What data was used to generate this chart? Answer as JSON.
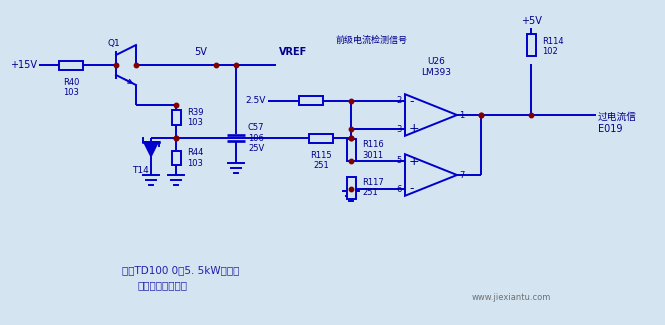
{
  "bg_color": "#d4e4f0",
  "line_color": "#0000cc",
  "dot_color": "#800000",
  "text_color": "#00008b",
  "title1": "华为TD100 0型5. 5kW变频器",
  "title2": "电流检测后级电路",
  "watermark": "www.jiexiantu.com",
  "label_15v": "+15V",
  "label_5v_top": "5V",
  "label_5v_supply": "+5V",
  "label_vref": "VREF",
  "label_q1": "Q1",
  "label_r40": "R40\n103",
  "label_t14": "T14",
  "label_r39": "R39\n103",
  "label_r44": "R44\n103",
  "label_c57": "C57\n106\n25V",
  "label_r115": "R115\n251",
  "label_r116": "R116\n3011",
  "label_r117": "R117\n251",
  "label_r114": "R114\n102",
  "label_u26": "U26\nLM393",
  "label_signal_in": "前级电流检测信号",
  "label_2_5v": "2.5V",
  "label_output": "过电流信\nE019",
  "pin2": "2",
  "pin3": "3",
  "pin1": "1",
  "pin5": "5",
  "pin6": "6",
  "pin7": "7"
}
